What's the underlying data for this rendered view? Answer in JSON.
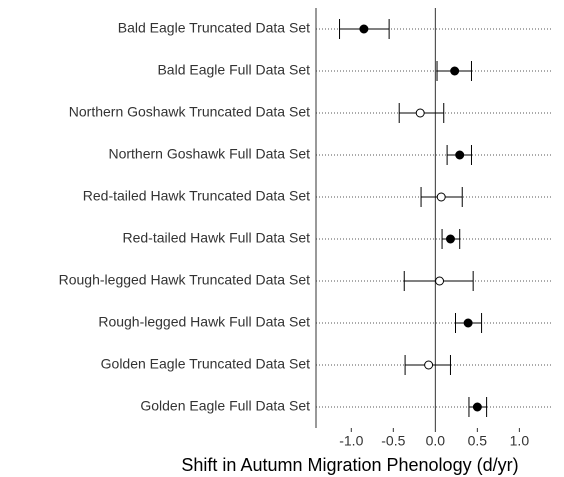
{
  "chart_data": {
    "type": "forest",
    "x_label": "Shift in Autumn Migration Phenology (d/yr)",
    "categories": [
      "Bald Eagle Truncated Data Set",
      "Bald Eagle Full Data Set",
      "Northern Goshawk Truncated Data Set",
      "Northern Goshawk Full Data Set",
      "Red-tailed Hawk Truncated Data Set",
      "Red-tailed Hawk Full Data Set",
      "Rough-legged Hawk Truncated Data Set",
      "Rough-legged Hawk Full Data Set",
      "Golden Eagle Truncated Data Set",
      "Golden Eagle Full Data Set"
    ],
    "values": [
      -0.85,
      0.23,
      -0.18,
      0.29,
      0.07,
      0.18,
      0.05,
      0.39,
      -0.08,
      0.5
    ],
    "lower": [
      -1.14,
      0.02,
      -0.43,
      0.14,
      -0.17,
      0.08,
      -0.37,
      0.24,
      -0.36,
      0.4
    ],
    "upper": [
      -0.55,
      0.43,
      0.1,
      0.43,
      0.32,
      0.29,
      0.45,
      0.55,
      0.18,
      0.61
    ],
    "filled": [
      true,
      true,
      false,
      true,
      false,
      true,
      false,
      true,
      false,
      true
    ],
    "color": "#000000",
    "xlim": [
      -1.42,
      1.4
    ],
    "xticks": [
      {
        "value": -1,
        "label": "-1.0"
      },
      -0.5,
      {
        "value": 0,
        "label": "0.0"
      },
      0.5,
      {
        "value": 1,
        "label": "1.0"
      }
    ],
    "vline": 0,
    "grid": "dotted"
  }
}
